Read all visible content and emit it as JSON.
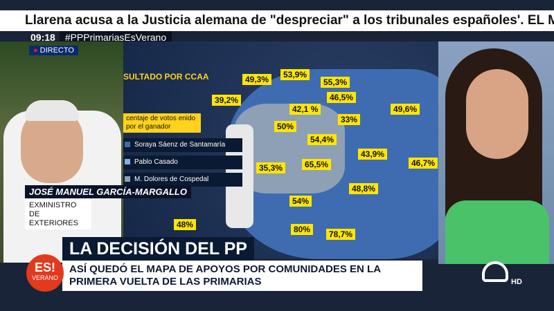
{
  "ticker": {
    "text": "Llarena acusa a la Justicia alemana de \"despreciar\" a los tribunales españoles'. EL MUNDO"
  },
  "hashtag_bar": {
    "time": "09:18",
    "hashtag": "#PPPrimariasEsVerano"
  },
  "live": {
    "label": "DIRECTO"
  },
  "guest": {
    "name": "JOSÉ MANUEL GARCÍA-MARGALLO",
    "role": "EXMINISTRO DE EXTERIORES"
  },
  "map": {
    "title": "SULTADO POR CCAA",
    "note": "centaje de votos enido por el ganador",
    "legend": [
      {
        "label": "Soraya Sáenz de Santamaría",
        "color": "#3f6cb0"
      },
      {
        "label": "Pablo Casado",
        "color": "#7db3e8"
      },
      {
        "label": "M. Dolores de Cospedal",
        "color": "#8ea0b6"
      }
    ],
    "percentages": [
      "49,3%",
      "53,9%",
      "55,3%",
      "39,2%",
      "42,1 %",
      "46,5%",
      "49,6%",
      "50%",
      "33%",
      "54,4%",
      "43,9%",
      "46,7%",
      "35,3%",
      "65,5%",
      "48,8%",
      "54%",
      "48%",
      "80%",
      "78,7%"
    ]
  },
  "lower_third": {
    "headline": "LA DECISIÓN DEL PP",
    "subline": "ASÍ QUEDÓ EL MAPA DE APOYOS POR COMUNIDADES EN LA PRIMERA VUELTA DE LAS PRIMARIAS"
  },
  "show_logo": {
    "text": "ES!",
    "subtext": "VERANO"
  },
  "channel": {
    "quality": "HD"
  }
}
